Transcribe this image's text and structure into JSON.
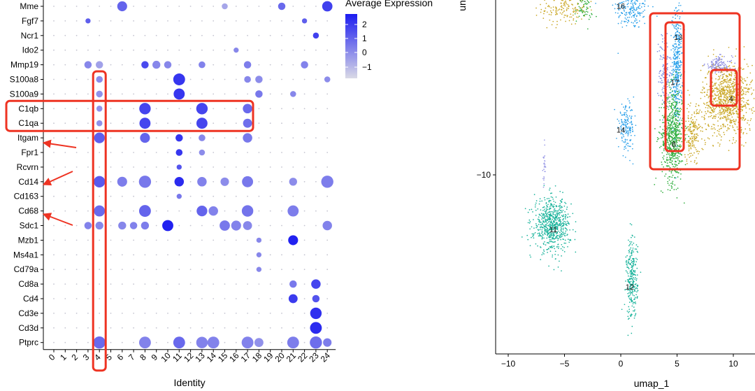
{
  "chart_data": [
    {
      "type": "scatter",
      "subtype": "dotplot",
      "xlabel": "Identity",
      "categories": [
        "0",
        "1",
        "2",
        "3",
        "4",
        "5",
        "6",
        "7",
        "8",
        "9",
        "10",
        "11",
        "12",
        "13",
        "14",
        "15",
        "16",
        "17",
        "18",
        "19",
        "20",
        "21",
        "22",
        "23",
        "24"
      ],
      "genes": [
        "Mme",
        "Fgf7",
        "Ncr1",
        "Ido2",
        "Mmp19",
        "S100a8",
        "S100a9",
        "C1qb",
        "C1qa",
        "Itgam",
        "Fpr1",
        "Rcvrn",
        "Cd14",
        "Cd163",
        "Cd68",
        "Sdc1",
        "Mzb1",
        "Ms4a1",
        "Cd79a",
        "Cd8a",
        "Cd4",
        "Cd3e",
        "Cd3d",
        "Ptprc"
      ],
      "legend": {
        "title": "Average Expression",
        "ticks": [
          "2",
          "1",
          "0",
          "−1"
        ],
        "low_color": "#d9d9e6",
        "high_color": "#1c1cf0"
      },
      "highlight_color": "#ee3322",
      "highlight_rows": [
        "C1qb",
        "C1qa"
      ],
      "highlight_column": "4",
      "arrow_targets": [
        "Itgam",
        "Cd14",
        "Cd68"
      ],
      "dots": [
        [
          0,
          6,
          10,
          0.9
        ],
        [
          0,
          15,
          3,
          -0.4
        ],
        [
          0,
          20,
          5,
          0.8
        ],
        [
          0,
          24,
          11,
          1.6
        ],
        [
          1,
          3,
          2,
          1.0
        ],
        [
          1,
          22,
          2,
          1.0
        ],
        [
          2,
          23,
          3,
          1.6
        ],
        [
          3,
          16,
          2,
          0.2
        ],
        [
          4,
          3,
          5,
          0.2
        ],
        [
          4,
          4,
          5,
          -0.3
        ],
        [
          4,
          8,
          5,
          1.4
        ],
        [
          4,
          9,
          6,
          0.2
        ],
        [
          4,
          10,
          5,
          0.2
        ],
        [
          4,
          13,
          4,
          0.3
        ],
        [
          4,
          17,
          5,
          0.4
        ],
        [
          4,
          22,
          5,
          0.3
        ],
        [
          5,
          4,
          4,
          0.1
        ],
        [
          5,
          11,
          15,
          1.8
        ],
        [
          5,
          17,
          4,
          0.2
        ],
        [
          5,
          18,
          5,
          0.1
        ],
        [
          5,
          24,
          3,
          0.1
        ],
        [
          6,
          4,
          4,
          0.0
        ],
        [
          6,
          11,
          13,
          1.8
        ],
        [
          6,
          18,
          5,
          0.5
        ],
        [
          6,
          21,
          3,
          0.2
        ],
        [
          7,
          4,
          3,
          0.0
        ],
        [
          7,
          8,
          14,
          1.5
        ],
        [
          7,
          13,
          14,
          1.5
        ],
        [
          7,
          17,
          9,
          0.8
        ],
        [
          8,
          4,
          3,
          0.0
        ],
        [
          8,
          8,
          13,
          1.5
        ],
        [
          8,
          13,
          13,
          1.5
        ],
        [
          8,
          17,
          8,
          0.7
        ],
        [
          9,
          4,
          12,
          1.0
        ],
        [
          9,
          8,
          10,
          0.9
        ],
        [
          9,
          11,
          5,
          1.8
        ],
        [
          9,
          13,
          4,
          0.2
        ],
        [
          9,
          17,
          9,
          0.5
        ],
        [
          10,
          11,
          4,
          1.8
        ],
        [
          10,
          13,
          3,
          0.1
        ],
        [
          11,
          11,
          2,
          1.2
        ],
        [
          12,
          4,
          14,
          1.1
        ],
        [
          12,
          6,
          10,
          0.4
        ],
        [
          12,
          8,
          16,
          0.5
        ],
        [
          12,
          11,
          9,
          2.0
        ],
        [
          12,
          13,
          9,
          0.3
        ],
        [
          12,
          15,
          7,
          0.1
        ],
        [
          12,
          17,
          13,
          0.5
        ],
        [
          12,
          21,
          6,
          0.1
        ],
        [
          12,
          24,
          16,
          0.4
        ],
        [
          13,
          11,
          2,
          0.5
        ],
        [
          14,
          4,
          13,
          0.8
        ],
        [
          14,
          8,
          15,
          0.9
        ],
        [
          14,
          13,
          12,
          0.9
        ],
        [
          14,
          14,
          9,
          0.3
        ],
        [
          14,
          17,
          14,
          0.6
        ],
        [
          14,
          21,
          13,
          0.4
        ],
        [
          15,
          3,
          5,
          0.3
        ],
        [
          15,
          4,
          6,
          0.2
        ],
        [
          15,
          6,
          6,
          0.2
        ],
        [
          15,
          7,
          5,
          0.3
        ],
        [
          15,
          8,
          6,
          0.4
        ],
        [
          15,
          10,
          13,
          2.2
        ],
        [
          15,
          15,
          11,
          0.5
        ],
        [
          15,
          16,
          10,
          0.3
        ],
        [
          15,
          17,
          8,
          0.2
        ],
        [
          15,
          24,
          9,
          0.3
        ],
        [
          16,
          21,
          10,
          2.2
        ],
        [
          16,
          18,
          2,
          0.2
        ],
        [
          17,
          18,
          2,
          0.2
        ],
        [
          18,
          18,
          2,
          0.2
        ],
        [
          19,
          21,
          5,
          0.5
        ],
        [
          19,
          23,
          9,
          1.5
        ],
        [
          20,
          21,
          8,
          1.7
        ],
        [
          20,
          23,
          5,
          1.2
        ],
        [
          21,
          23,
          14,
          1.9
        ],
        [
          22,
          23,
          15,
          2.0
        ],
        [
          23,
          4,
          16,
          0.8
        ],
        [
          23,
          8,
          15,
          0.3
        ],
        [
          23,
          11,
          15,
          0.8
        ],
        [
          23,
          13,
          14,
          0.3
        ],
        [
          23,
          14,
          15,
          0.3
        ],
        [
          23,
          17,
          15,
          0.3
        ],
        [
          23,
          18,
          8,
          0.0
        ],
        [
          23,
          21,
          15,
          0.4
        ],
        [
          23,
          23,
          16,
          0.7
        ],
        [
          23,
          24,
          7,
          0.4
        ]
      ]
    },
    {
      "type": "scatter",
      "subtype": "umap",
      "xlabel": "umap_1",
      "ylabel": "un",
      "xticks": [
        "−10",
        "−5",
        "0",
        "5",
        "10"
      ],
      "yticks": [
        "−10"
      ],
      "xlim": [
        -11.5,
        11.5
      ],
      "ylim": [
        -17.6,
        -2.9
      ],
      "cluster_labels": [
        {
          "label": "16",
          "x": 0,
          "y": -2.9
        },
        {
          "label": "13",
          "x": 5.1,
          "y": -4.2
        },
        {
          "label": "17",
          "x": 4.8,
          "y": -6.1
        },
        {
          "label": "4",
          "x": 9.8,
          "y": -6.8
        },
        {
          "label": "14",
          "x": 0,
          "y": -8.1
        },
        {
          "label": "8",
          "x": 4.7,
          "y": -8.7
        },
        {
          "label": "11",
          "x": -6,
          "y": -12.3
        },
        {
          "label": "12",
          "x": 0.8,
          "y": -14.7
        }
      ],
      "clusters": [
        {
          "id": "16",
          "color": "#2aa0ea",
          "cx": 1.0,
          "cy": -3.0,
          "sx": 0.8,
          "sy": 0.45,
          "n": 200
        },
        {
          "id": "gold-top",
          "color": "#c9a623",
          "cx": -5.0,
          "cy": -3.0,
          "sx": 1.0,
          "sy": 0.35,
          "n": 150
        },
        {
          "id": "green-top",
          "color": "#2cad3a",
          "cx": -3.3,
          "cy": -3.0,
          "sx": 0.4,
          "sy": 0.3,
          "n": 60
        },
        {
          "id": "13",
          "color": "#2aa0ea",
          "cx": 5.0,
          "cy": -5.5,
          "sx": 0.22,
          "sy": 1.2,
          "n": 380
        },
        {
          "id": "17",
          "color": "#7d8ee0",
          "cx": 3.9,
          "cy": -5.7,
          "sx": 0.25,
          "sy": 0.9,
          "n": 150
        },
        {
          "id": "8",
          "color": "#2cad3a",
          "cx": 4.6,
          "cy": -8.3,
          "sx": 0.5,
          "sy": 1.0,
          "n": 650
        },
        {
          "id": "4",
          "color": "#c9a623",
          "cx": 9.5,
          "cy": -6.8,
          "sx": 1.1,
          "sy": 0.75,
          "n": 900
        },
        {
          "id": "4b",
          "color": "#c9a623",
          "cx": 6.4,
          "cy": -8.3,
          "sx": 0.5,
          "sy": 0.6,
          "n": 180
        },
        {
          "id": "purple-r",
          "color": "#8a8ae0",
          "cx": 8.7,
          "cy": -5.4,
          "sx": 0.6,
          "sy": 0.18,
          "n": 120
        },
        {
          "id": "14",
          "color": "#2aa0ea",
          "cx": 0.5,
          "cy": -8.0,
          "sx": 0.35,
          "sy": 0.45,
          "n": 160
        },
        {
          "id": "11",
          "color": "#19b39b",
          "cx": -6.1,
          "cy": -12.1,
          "sx": 0.8,
          "sy": 0.55,
          "n": 650
        },
        {
          "id": "12",
          "color": "#19b39b",
          "cx": 1.0,
          "cy": -14.4,
          "sx": 0.25,
          "sy": 0.85,
          "n": 280
        },
        {
          "id": "thin",
          "color": "#9a9ae6",
          "cx": -6.8,
          "cy": -9.6,
          "sx": 0.06,
          "sy": 0.45,
          "n": 25
        }
      ]
    }
  ]
}
